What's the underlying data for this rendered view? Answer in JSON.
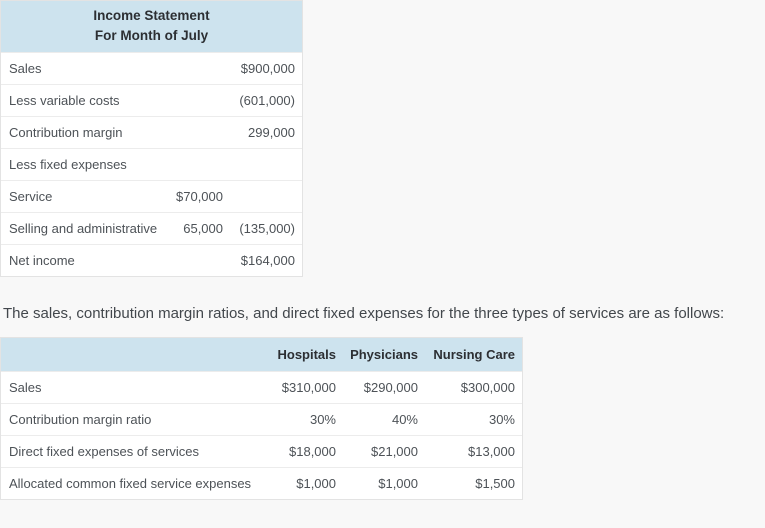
{
  "colors": {
    "header_bg": "#cde3ee",
    "page_bg": "#f8f8f8",
    "table_bg": "#ffffff",
    "border": "#e3e3e3",
    "body_text": "#4d5257",
    "header_text": "#2c2f33"
  },
  "income_statement": {
    "title_line1": "Income Statement",
    "title_line2": "For Month of July",
    "rows": [
      {
        "label": "Sales",
        "mid": "",
        "val": "$900,000"
      },
      {
        "label": "Less variable costs",
        "mid": "",
        "val": "(601,000)"
      },
      {
        "label": "Contribution margin",
        "mid": "",
        "val": "299,000"
      },
      {
        "label": "Less fixed expenses",
        "mid": "",
        "val": ""
      },
      {
        "label": "Service",
        "mid": "$70,000",
        "val": ""
      },
      {
        "label": "Selling and administrative",
        "mid": "65,000",
        "val": "(135,000)"
      },
      {
        "label": "Net income",
        "mid": "",
        "val": "$164,000"
      }
    ]
  },
  "intro_text": "The sales, contribution margin ratios, and direct fixed expenses for the three types of services are as follows:",
  "services_table": {
    "columns": [
      "Hospitals",
      "Physicians",
      "Nursing Care"
    ],
    "rows": [
      {
        "label": "Sales",
        "values": [
          "$310,000",
          "$290,000",
          "$300,000"
        ]
      },
      {
        "label": "Contribution margin ratio",
        "values": [
          "30%",
          "40%",
          "30%"
        ]
      },
      {
        "label": "Direct fixed expenses of services",
        "values": [
          "$18,000",
          "$21,000",
          "$13,000"
        ]
      },
      {
        "label": "Allocated common fixed service expenses",
        "values": [
          "$1,000",
          "$1,000",
          "$1,500"
        ]
      }
    ]
  }
}
